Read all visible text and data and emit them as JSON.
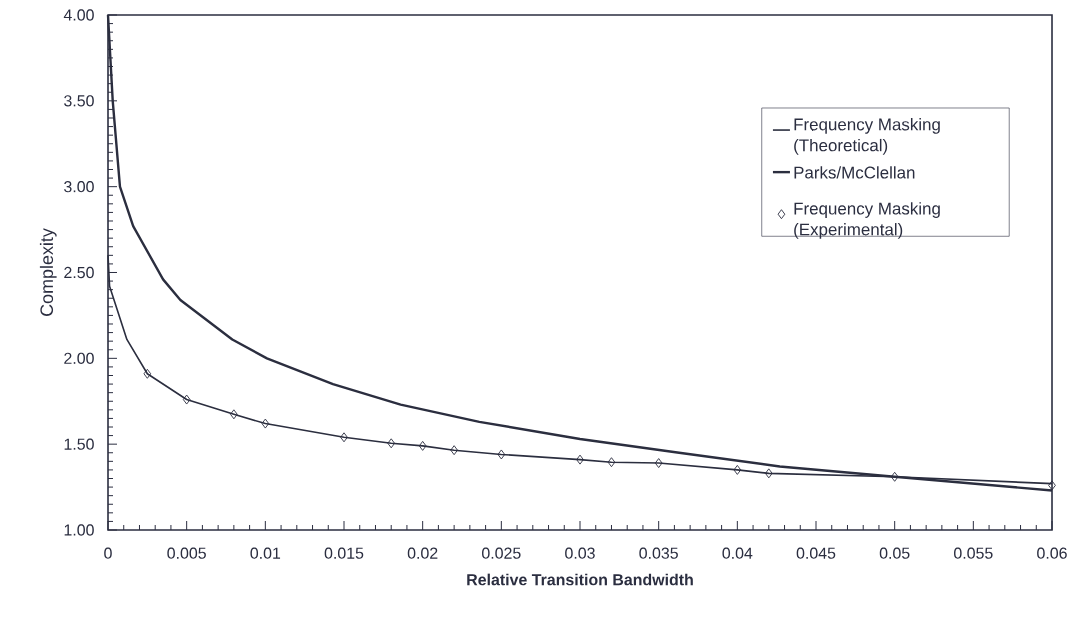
{
  "chart_data": {
    "type": "line",
    "xlabel": "Relative Transition Bandwidth",
    "ylabel": "Complexity",
    "xlim": [
      0,
      0.06
    ],
    "ylim": [
      1,
      4
    ],
    "xticks": [
      0,
      0.005,
      0.01,
      0.015,
      0.02,
      0.025,
      0.03,
      0.035,
      0.04,
      0.045,
      0.05,
      0.055,
      0.06
    ],
    "yticks": [
      {
        "value": 1,
        "label": "1.00"
      },
      {
        "value": 1.5,
        "label": "1.50"
      },
      {
        "value": 2,
        "label": "2.00"
      },
      {
        "value": 2.5,
        "label": "2.50"
      },
      {
        "value": 3,
        "label": "3.00"
      },
      {
        "value": 3.5,
        "label": "3.50"
      },
      {
        "value": 4,
        "label": "4.00"
      }
    ],
    "grid": false,
    "legend": "top right",
    "series": [
      {
        "name": "Frequency Masking (Theoretical)",
        "color": "#2b2e3f",
        "line_style": "solid",
        "x": [
          0,
          0.0001,
          0.0012,
          0.0025,
          0.005,
          0.008,
          0.01,
          0.015,
          0.018,
          0.02,
          0.022,
          0.025,
          0.03,
          0.032,
          0.035,
          0.04,
          0.042,
          0.05,
          0.06
        ],
        "values": [
          2.6,
          2.42,
          2.11,
          1.91,
          1.76,
          1.674,
          1.62,
          1.54,
          1.505,
          1.49,
          1.465,
          1.44,
          1.41,
          1.395,
          1.39,
          1.35,
          1.33,
          1.31,
          1.27
        ]
      },
      {
        "name": "Parks/McClellan",
        "color": "#2b2e3f",
        "line_style": "solid",
        "x": [
          0,
          0.0003,
          0.00076,
          0.0016,
          0.0035,
          0.0046,
          0.0079,
          0.0101,
          0.0143,
          0.0186,
          0.0236,
          0.03,
          0.0363,
          0.0427,
          0.05,
          0.06
        ],
        "values": [
          4.0,
          3.5,
          3.0,
          2.77,
          2.46,
          2.34,
          2.11,
          2.0,
          1.85,
          1.73,
          1.63,
          1.53,
          1.45,
          1.37,
          1.31,
          1.23
        ]
      },
      {
        "name": "Frequency Masking (Experimental)",
        "type": "scatter",
        "color": "#2b2e3f",
        "marker": "diamond",
        "x": [
          0.0025,
          0.005,
          0.008,
          0.01,
          0.015,
          0.018,
          0.02,
          0.022,
          0.025,
          0.03,
          0.032,
          0.035,
          0.04,
          0.042,
          0.05,
          0.06
        ],
        "values": [
          1.91,
          1.76,
          1.674,
          1.62,
          1.54,
          1.505,
          1.49,
          1.465,
          1.44,
          1.41,
          1.395,
          1.39,
          1.35,
          1.33,
          1.31,
          1.26
        ]
      }
    ]
  }
}
